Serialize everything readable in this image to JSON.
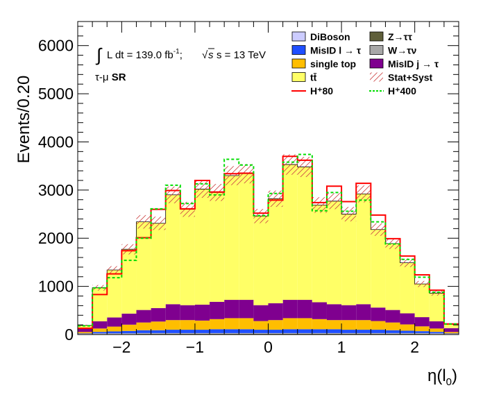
{
  "chart_data": {
    "type": "bar",
    "xlabel": "η(l",
    "xlabel_sub": "0",
    "xlabel_close": ")",
    "ylabel": "Events/0.20",
    "xlim": [
      -2.6,
      2.6
    ],
    "ylim": [
      0,
      6500
    ],
    "x_ticks": [
      -2,
      -1,
      0,
      1,
      2
    ],
    "x_tick_labels": [
      "−2",
      "−1",
      "0",
      "1",
      "2"
    ],
    "y_ticks": [
      0,
      1000,
      2000,
      3000,
      4000,
      5000,
      6000
    ],
    "y_tick_labels": [
      "0",
      "1000",
      "2000",
      "3000",
      "4000",
      "5000",
      "6000"
    ],
    "bin_edges": [
      -2.6,
      -2.4,
      -2.2,
      -2.0,
      -1.8,
      -1.6,
      -1.4,
      -1.2,
      -1.0,
      -0.8,
      -0.6,
      -0.4,
      -0.2,
      0.0,
      0.2,
      0.4,
      0.6,
      0.8,
      1.0,
      1.2,
      1.4,
      1.6,
      1.8,
      2.0,
      2.2,
      2.4,
      2.6
    ],
    "stack": [
      {
        "name": "Z→ττ",
        "color": "#5f5f3a",
        "values": [
          5,
          10,
          10,
          10,
          15,
          15,
          15,
          15,
          15,
          15,
          15,
          15,
          15,
          15,
          15,
          15,
          15,
          15,
          15,
          15,
          15,
          15,
          15,
          15,
          10,
          5
        ]
      },
      {
        "name": "W→τν",
        "color": "#a8a8a8",
        "values": [
          5,
          10,
          10,
          10,
          10,
          10,
          10,
          10,
          10,
          10,
          10,
          10,
          10,
          10,
          10,
          10,
          10,
          10,
          10,
          10,
          10,
          10,
          10,
          10,
          10,
          5
        ]
      },
      {
        "name": "DiBoson",
        "color": "#ccccff",
        "values": [
          3,
          5,
          5,
          5,
          5,
          5,
          5,
          5,
          5,
          5,
          5,
          5,
          5,
          5,
          5,
          5,
          5,
          5,
          5,
          5,
          5,
          5,
          5,
          5,
          5,
          3
        ]
      },
      {
        "name": "MisID l → τ",
        "color": "#1f4fff",
        "values": [
          10,
          30,
          40,
          50,
          60,
          60,
          70,
          70,
          70,
          80,
          80,
          80,
          70,
          70,
          80,
          80,
          80,
          80,
          70,
          70,
          70,
          60,
          50,
          40,
          30,
          10
        ]
      },
      {
        "name": "single top",
        "color": "#ffbe00",
        "values": [
          30,
          70,
          100,
          130,
          160,
          180,
          200,
          200,
          190,
          210,
          230,
          230,
          180,
          200,
          230,
          230,
          210,
          190,
          200,
          200,
          180,
          160,
          130,
          100,
          70,
          30
        ]
      },
      {
        "name": "MisID j → τ",
        "color": "#7f008f",
        "values": [
          80,
          150,
          190,
          230,
          260,
          280,
          330,
          310,
          330,
          360,
          380,
          380,
          330,
          350,
          380,
          380,
          350,
          330,
          310,
          330,
          280,
          260,
          230,
          190,
          150,
          80
        ]
      },
      {
        "name": "tt̄",
        "color": "#ffff66",
        "values": [
          57,
          695,
          985,
          1335,
          1830,
          1760,
          2270,
          1990,
          2400,
          2270,
          2580,
          2620,
          1850,
          2170,
          2810,
          2760,
          2020,
          2140,
          1890,
          2290,
          1620,
          1380,
          1050,
          690,
          585,
          82
        ]
      }
    ],
    "signals": [
      {
        "name": "H⁺80",
        "color": "#ff0000",
        "style": "solid",
        "values": [
          130,
          830,
          1260,
          1740,
          2010,
          2600,
          2990,
          2610,
          3200,
          2960,
          3340,
          3350,
          2520,
          2790,
          3700,
          3620,
          2740,
          3080,
          2760,
          3140,
          2480,
          1990,
          1630,
          1240,
          920,
          220
        ]
      },
      {
        "name": "H⁺400",
        "color": "#00dd00",
        "style": "dashed",
        "values": [
          180,
          970,
          1180,
          1540,
          2000,
          2610,
          3100,
          2720,
          3130,
          2900,
          3640,
          3520,
          2470,
          2930,
          3580,
          3740,
          2570,
          2950,
          2560,
          2790,
          2340,
          1880,
          1560,
          1190,
          880,
          220
        ]
      }
    ],
    "uncertainty": {
      "name": "Stat+Syst",
      "relative": 0.06
    },
    "annotations": {
      "lumi_prefix": "L dt = 139.0 fb",
      "lumi_exp": "-1",
      "lumi_sep": ";",
      "energy_suffix": "s = 13 TeV",
      "region_prefix": "τ-μ",
      "region_bold": "SR"
    },
    "legend": {
      "placement": "top-right",
      "columns": 2,
      "entries": [
        {
          "label": "DiBoson",
          "kind": "box",
          "color": "#ccccff"
        },
        {
          "label": "Z→ττ",
          "kind": "box",
          "color": "#5f5f3a"
        },
        {
          "label": "MisID l → τ",
          "kind": "box",
          "color": "#1f4fff"
        },
        {
          "label": "W→τν",
          "kind": "box",
          "color": "#a8a8a8"
        },
        {
          "label": "single top",
          "kind": "box",
          "color": "#ffbe00"
        },
        {
          "label": "MisID j → τ",
          "kind": "box",
          "color": "#7f008f"
        },
        {
          "label": "tt̄",
          "kind": "box",
          "color": "#ffff66"
        },
        {
          "label": "Stat+Syst",
          "kind": "hatch",
          "color": "#cc4444"
        },
        {
          "label": "H⁺80",
          "kind": "line",
          "color": "#ff0000"
        },
        {
          "label": "H⁺400",
          "kind": "dashline",
          "color": "#00dd00"
        }
      ]
    },
    "grid": false
  }
}
